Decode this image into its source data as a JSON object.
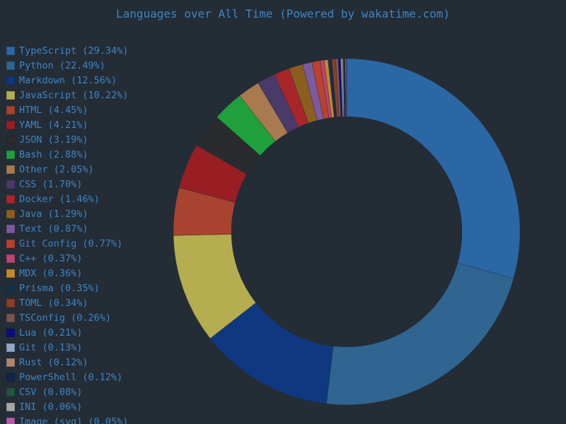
{
  "chart_data": {
    "type": "pie",
    "title": "Languages over All Time (Powered by wakatime.com)",
    "legend_position": "left",
    "slices": [
      {
        "label": "TypeScript (29.34%)",
        "name": "TypeScript",
        "value": 29.34,
        "color": "#2b67a5"
      },
      {
        "label": "Python (22.49%)",
        "name": "Python",
        "value": 22.49,
        "color": "#2f6590"
      },
      {
        "label": "Markdown (12.56%)",
        "name": "Markdown",
        "value": 12.56,
        "color": "#0f3880"
      },
      {
        "label": "JavaScript (10.22%)",
        "name": "JavaScript",
        "value": 10.22,
        "color": "#b5ad4f"
      },
      {
        "label": "HTML (4.45%)",
        "name": "HTML",
        "value": 4.45,
        "color": "#a8432f"
      },
      {
        "label": "YAML (4.21%)",
        "name": "YAML",
        "value": 4.21,
        "color": "#981e24"
      },
      {
        "label": "JSON (3.19%)",
        "name": "JSON",
        "value": 3.19,
        "color": "#2a2b2e"
      },
      {
        "label": "Bash (2.88%)",
        "name": "Bash",
        "value": 2.88,
        "color": "#1fa03c"
      },
      {
        "label": "Other (2.05%)",
        "name": "Other",
        "value": 2.05,
        "color": "#a97a50"
      },
      {
        "label": "CSS (1.70%)",
        "name": "CSS",
        "value": 1.7,
        "color": "#4a3a6a"
      },
      {
        "label": "Docker (1.46%)",
        "name": "Docker",
        "value": 1.46,
        "color": "#a8262a"
      },
      {
        "label": "Java (1.29%)",
        "name": "Java",
        "value": 1.29,
        "color": "#8b5e20"
      },
      {
        "label": "Text (0.87%)",
        "name": "Text",
        "value": 0.87,
        "color": "#7c5aa0"
      },
      {
        "label": "Git Config (0.77%)",
        "name": "Git Config",
        "value": 0.77,
        "color": "#b8422d"
      },
      {
        "label": "C++ (0.37%)",
        "name": "C++",
        "value": 0.37,
        "color": "#bc4470"
      },
      {
        "label": "MDX (0.36%)",
        "name": "MDX",
        "value": 0.36,
        "color": "#c18a2a"
      },
      {
        "label": "Prisma (0.35%)",
        "name": "Prisma",
        "value": 0.35,
        "color": "#13314a"
      },
      {
        "label": "TOML (0.34%)",
        "name": "TOML",
        "value": 0.34,
        "color": "#8c3e26"
      },
      {
        "label": "TSConfig (0.26%)",
        "name": "TSConfig",
        "value": 0.26,
        "color": "#7a5450"
      },
      {
        "label": "Lua (0.21%)",
        "name": "Lua",
        "value": 0.21,
        "color": "#0d0c7c"
      },
      {
        "label": "Git (0.13%)",
        "name": "Git",
        "value": 0.13,
        "color": "#8fa8c8"
      },
      {
        "label": "Rust (0.12%)",
        "name": "Rust",
        "value": 0.12,
        "color": "#b08270"
      },
      {
        "label": "PowerShell (0.12%)",
        "name": "PowerShell",
        "value": 0.12,
        "color": "#0e2548"
      },
      {
        "label": "CSV (0.08%)",
        "name": "CSV",
        "value": 0.08,
        "color": "#22573e"
      },
      {
        "label": "INI (0.06%)",
        "name": "INI",
        "value": 0.06,
        "color": "#a4a6a8"
      },
      {
        "label": "Image (svg) (0.05%)",
        "name": "Image (svg)",
        "value": 0.05,
        "color": "#b45aa8"
      }
    ]
  }
}
